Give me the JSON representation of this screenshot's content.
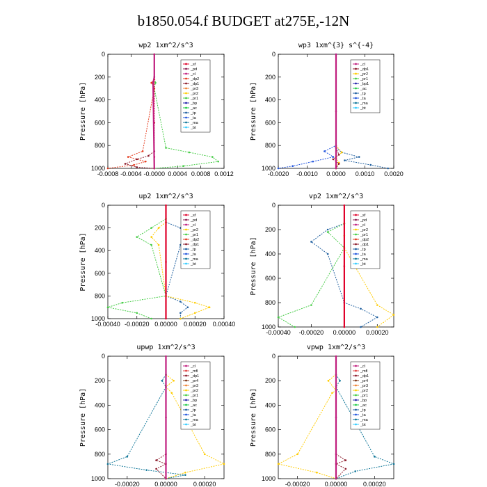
{
  "title": "b1850.054.f  BUDGET at275E,-12N",
  "colors": {
    "sf": "#e0002a",
    "pd": "#8b2252",
    "cl": "#c01d7e",
    "dp1": "#8b1a2a",
    "dp2": "#e53a1c",
    "pr1": "#44cc44",
    "pr2": "#ffcc00",
    "pr3": "#f08030",
    "pr4": "#7a3010",
    "bp": "#2222aa",
    "ac": "#22cc44",
    "tp": "#1f5f9f",
    "ta": "#2255dd",
    "ma": "#117799",
    "bt": "#33ccff",
    "mfl": "#e04040"
  },
  "chart_data": [
    {
      "type": "line",
      "title": "wp2  1xm^2/s^3",
      "ylabel": "Pressure [hPa]",
      "xlim": [
        -0.0008,
        0.0012
      ],
      "ylim": [
        1000,
        0
      ],
      "xticks": [
        -0.0008,
        -0.0004,
        0.0,
        0.0004,
        0.0008,
        0.0012
      ],
      "xtick_labels": [
        "-0.0008",
        "-0.0004",
        "-0.0000",
        "0.0004",
        "0.0008",
        "0.0012"
      ],
      "yticks": [
        0,
        200,
        400,
        600,
        800,
        1000
      ],
      "legend": [
        "_sf",
        "_pd",
        "_cl",
        "_dp2",
        "_dp1",
        "_pr3",
        "_pr2",
        "_pr1",
        "_bp",
        "_ac",
        "_tp",
        "_ta",
        "_ma",
        "_bt"
      ],
      "series": [
        {
          "name": "_pr1",
          "color_key": "pr1",
          "x": [
            0,
            0,
            2e-05,
            0,
            0.0002,
            0.0006,
            0.001,
            0.0011,
            0.0005,
            0
          ],
          "y": [
            0,
            200,
            250,
            300,
            820,
            860,
            900,
            940,
            980,
            1000
          ]
        },
        {
          "name": "_dp2",
          "color_key": "dp2",
          "x": [
            0,
            -5e-05,
            0,
            -0.0002,
            -0.00045,
            -0.00015,
            -0.00035,
            -0.0008
          ],
          "y": [
            220,
            250,
            300,
            850,
            900,
            940,
            970,
            1000
          ]
        },
        {
          "name": "_dp1",
          "color_key": "dp1",
          "x": [
            0,
            -0.0001,
            -0.0003,
            -0.0005,
            -0.0003,
            0
          ],
          "y": [
            850,
            890,
            920,
            960,
            990,
            1000
          ]
        },
        {
          "name": "_sf",
          "color_key": "sf",
          "x": [
            0,
            0,
            0,
            0
          ],
          "y": [
            0,
            600,
            900,
            1000
          ]
        },
        {
          "name": "_cl",
          "color_key": "cl",
          "x": [
            0,
            0,
            -2e-05,
            0
          ],
          "y": [
            0,
            200,
            250,
            1000
          ]
        }
      ]
    },
    {
      "type": "line",
      "title": "wp3  1xm^{3} s^{-4}",
      "ylabel": "Pressure [hPa]",
      "xlim": [
        -0.002,
        0.002
      ],
      "ylim": [
        1000,
        0
      ],
      "xticks": [
        -0.002,
        -0.001,
        0,
        0.001,
        0.002
      ],
      "xtick_labels": [
        "-0.0020",
        "-0.0010",
        "0.0000",
        "0.0010",
        "0.0020"
      ],
      "yticks": [
        0,
        200,
        400,
        600,
        800,
        1000
      ],
      "legend": [
        "_cl",
        "_dp1",
        "_pr2",
        "_pr1",
        "_bp1",
        "_ac",
        "_tp",
        "_ta",
        "_ma",
        "_bt"
      ],
      "series": [
        {
          "name": "_ta",
          "color_key": "ta",
          "x": [
            0,
            0,
            -0.0004,
            -0.0001,
            -0.0008,
            -0.0015,
            -0.002
          ],
          "y": [
            0,
            800,
            850,
            900,
            940,
            980,
            1000
          ]
        },
        {
          "name": "_tp",
          "color_key": "tp",
          "x": [
            0,
            0.0002,
            0.0008,
            0.0003,
            0.0012,
            0.0018
          ],
          "y": [
            820,
            860,
            900,
            930,
            970,
            1000
          ]
        },
        {
          "name": "_pr2",
          "color_key": "pr2",
          "x": [
            0,
            0.0002,
            0,
            0.0001,
            0
          ],
          "y": [
            800,
            860,
            900,
            950,
            1000
          ]
        },
        {
          "name": "_dp1",
          "color_key": "dp1",
          "x": [
            0,
            0.0001,
            -0.0001,
            0.0001,
            0
          ],
          "y": [
            820,
            880,
            920,
            960,
            1000
          ]
        },
        {
          "name": "_cl",
          "color_key": "cl",
          "x": [
            0,
            0,
            0
          ],
          "y": [
            0,
            500,
            1000
          ]
        }
      ]
    },
    {
      "type": "line",
      "title": "up2  1xm^2/s^3",
      "ylabel": "Pressure [hPa]",
      "xlim": [
        -0.0004,
        0.0004
      ],
      "ylim": [
        1000,
        0
      ],
      "xticks": [
        -0.0004,
        -0.0002,
        0,
        0.0002,
        0.0004
      ],
      "xtick_labels": [
        "-0.00040",
        "-0.00020",
        "0.00000",
        "0.00020",
        "0.00040"
      ],
      "yticks": [
        0,
        200,
        400,
        600,
        800,
        1000
      ],
      "legend": [
        "_sf",
        "_pd",
        "_cl",
        "_pr2",
        "_pr1",
        "_dp2",
        "_dp1",
        "_tp",
        "_ta",
        "_ma",
        "_bt"
      ],
      "series": [
        {
          "name": "_dp1",
          "color_key": "tp",
          "x": [
            0,
            0.0001,
            0.0002,
            0.0001,
            0,
            0.0001,
            0.00015,
            0.0001,
            0.0001
          ],
          "y": [
            150,
            200,
            300,
            350,
            800,
            850,
            900,
            950,
            1000
          ]
        },
        {
          "name": "_pr1",
          "color_key": "pr1",
          "x": [
            0,
            -0.0001,
            -0.0002,
            -0.0001,
            0,
            -0.0003,
            -0.0004,
            -0.0002,
            -0.0001
          ],
          "y": [
            120,
            200,
            280,
            350,
            800,
            860,
            900,
            950,
            1000
          ]
        },
        {
          "name": "_pr2",
          "color_key": "pr2",
          "x": [
            0,
            -5e-05,
            -0.0001,
            -5e-05,
            0,
            0.0002,
            0.0003,
            0.0002,
            0.0001
          ],
          "y": [
            150,
            200,
            280,
            350,
            800,
            860,
            900,
            950,
            1000
          ]
        },
        {
          "name": "_sf",
          "color_key": "sf",
          "x": [
            0,
            0,
            0
          ],
          "y": [
            0,
            500,
            1000
          ]
        }
      ]
    },
    {
      "type": "line",
      "title": "vp2  1xm^2/s^3",
      "ylabel": "Pressure [hPa]",
      "xlim": [
        -0.0004,
        0.0003
      ],
      "ylim": [
        1000,
        0
      ],
      "xticks": [
        -0.0004,
        -0.0002,
        0,
        0.0002
      ],
      "xtick_labels": [
        "-0.00040",
        "-0.00020",
        "0.00000",
        "0.00020"
      ],
      "yticks": [
        0,
        200,
        400,
        600,
        800,
        1000
      ],
      "legend": [
        "_sf",
        "_pd",
        "_cl",
        "_pr2",
        "_pr1",
        "_dp2",
        "_dp1",
        "_tp",
        "_ta",
        "_ma",
        "_bt"
      ],
      "series": [
        {
          "name": "_dp1",
          "color_key": "tp",
          "x": [
            0,
            -0.0001,
            -0.0002,
            -0.0001,
            0,
            0.0001,
            0.0002,
            0.0001
          ],
          "y": [
            150,
            200,
            300,
            400,
            800,
            850,
            920,
            1000
          ]
        },
        {
          "name": "_pr1",
          "color_key": "pr1",
          "x": [
            0,
            -0.0001,
            0,
            -0.0002,
            -0.0004,
            -0.0003
          ],
          "y": [
            150,
            220,
            350,
            820,
            920,
            1000
          ]
        },
        {
          "name": "_pr2",
          "color_key": "pr2",
          "x": [
            0,
            0,
            0,
            0.0002,
            0.0003,
            0.0002
          ],
          "y": [
            150,
            250,
            350,
            820,
            900,
            1000
          ]
        },
        {
          "name": "_sf",
          "color_key": "sf",
          "x": [
            0,
            0,
            0
          ],
          "y": [
            0,
            500,
            1000
          ]
        }
      ]
    },
    {
      "type": "line",
      "title": "upwp  1xm^2/s^3",
      "ylabel": "Pressure [hPa]",
      "xlim": [
        -0.0003,
        0.0003
      ],
      "ylim": [
        1000,
        0
      ],
      "xticks": [
        -0.0002,
        0,
        0.0002
      ],
      "xtick_labels": [
        "-0.00020",
        "0.00000",
        "0.00020"
      ],
      "yticks": [
        0,
        200,
        400,
        600,
        800,
        1000
      ],
      "legend": [
        "_cl",
        "_mfl",
        "_dp1",
        "_pr4",
        "_pr3",
        "_pr2",
        "_pr1",
        "_bp",
        "_ac",
        "_tp",
        "_ta",
        "_ma",
        "_bt"
      ],
      "series": [
        {
          "name": "_pr1",
          "color_key": "pr2",
          "x": [
            0,
            4e-05,
            0,
            3e-05,
            0.0002,
            0.0003,
            0.0001,
            0
          ],
          "y": [
            150,
            200,
            250,
            300,
            800,
            880,
            950,
            1000
          ]
        },
        {
          "name": "_tp",
          "color_key": "ma",
          "x": [
            0,
            -2e-05,
            0,
            -0.0002,
            -0.0003,
            -0.0001,
            0.0001,
            0
          ],
          "y": [
            150,
            200,
            250,
            820,
            880,
            930,
            970,
            1000
          ]
        },
        {
          "name": "_dp1",
          "color_key": "dp1",
          "x": [
            0,
            -5e-05,
            0,
            -5e-05,
            0
          ],
          "y": [
            800,
            850,
            880,
            920,
            1000
          ]
        },
        {
          "name": "_cl",
          "color_key": "cl",
          "x": [
            0,
            0,
            0
          ],
          "y": [
            0,
            500,
            1000
          ]
        }
      ]
    },
    {
      "type": "line",
      "title": "vpwp  1xm^2/s^3",
      "ylabel": "Pressure [hPa]",
      "xlim": [
        -0.0003,
        0.0003
      ],
      "ylim": [
        1000,
        0
      ],
      "xticks": [
        -0.0002,
        0,
        0.0002
      ],
      "xtick_labels": [
        "-0.00020",
        "0.00000",
        "0.00020"
      ],
      "yticks": [
        0,
        200,
        400,
        600,
        800,
        1000
      ],
      "legend": [
        "_cl",
        "_mfl",
        "_dp1",
        "_pr4",
        "_pr3",
        "_pr2",
        "_pr1",
        "_bp",
        "_ac",
        "_tp",
        "_ta",
        "_ma",
        "_bt"
      ],
      "series": [
        {
          "name": "_pr1",
          "color_key": "pr2",
          "x": [
            0,
            -4e-05,
            0,
            -2e-05,
            -0.0002,
            -0.0003,
            -0.0001,
            0
          ],
          "y": [
            150,
            200,
            280,
            300,
            800,
            880,
            950,
            1000
          ]
        },
        {
          "name": "_tp",
          "color_key": "ma",
          "x": [
            0,
            2e-05,
            0,
            0.0002,
            0.0003,
            0.0001,
            0
          ],
          "y": [
            150,
            200,
            250,
            820,
            880,
            940,
            1000
          ]
        },
        {
          "name": "_dp1",
          "color_key": "dp1",
          "x": [
            0,
            5e-05,
            0,
            5e-05,
            0
          ],
          "y": [
            800,
            850,
            880,
            920,
            1000
          ]
        },
        {
          "name": "_cl",
          "color_key": "cl",
          "x": [
            0,
            0,
            0
          ],
          "y": [
            0,
            500,
            1000
          ]
        }
      ]
    }
  ]
}
